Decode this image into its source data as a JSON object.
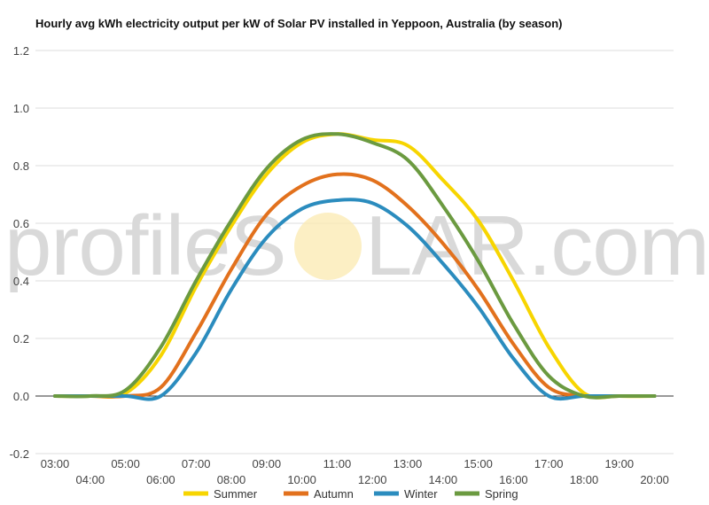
{
  "chart_data": {
    "type": "line",
    "title": "Hourly avg kWh electricity output per kW of Solar PV installed in Yeppoon, Australia (by season)",
    "xlabel": "",
    "ylabel": "",
    "ylim": [
      -0.2,
      1.2
    ],
    "yticks": [
      "-0.2",
      "0.0",
      "0.2",
      "0.4",
      "0.6",
      "0.8",
      "1.0",
      "1.2"
    ],
    "grid": true,
    "legend_position": "bottom",
    "x": [
      "03:00",
      "04:00",
      "05:00",
      "06:00",
      "07:00",
      "08:00",
      "09:00",
      "10:00",
      "11:00",
      "12:00",
      "13:00",
      "14:00",
      "15:00",
      "16:00",
      "17:00",
      "18:00",
      "19:00",
      "20:00"
    ],
    "series": [
      {
        "name": "Summer",
        "color": "#f7d500",
        "values": [
          0,
          0,
          0.01,
          0.14,
          0.38,
          0.59,
          0.77,
          0.88,
          0.91,
          0.89,
          0.87,
          0.75,
          0.61,
          0.4,
          0.17,
          0.01,
          0,
          0
        ]
      },
      {
        "name": "Autumn",
        "color": "#e2711d",
        "values": [
          0,
          0,
          0,
          0.03,
          0.22,
          0.44,
          0.63,
          0.73,
          0.77,
          0.75,
          0.66,
          0.53,
          0.37,
          0.18,
          0.03,
          0,
          0,
          0
        ]
      },
      {
        "name": "Winter",
        "color": "#2b8cbe",
        "values": [
          0,
          0,
          0,
          0,
          0.15,
          0.37,
          0.55,
          0.65,
          0.68,
          0.67,
          0.59,
          0.46,
          0.31,
          0.13,
          0,
          0,
          0,
          0
        ]
      },
      {
        "name": "Spring",
        "color": "#6b9a40",
        "values": [
          0,
          0,
          0.02,
          0.17,
          0.4,
          0.61,
          0.79,
          0.89,
          0.91,
          0.88,
          0.82,
          0.66,
          0.47,
          0.25,
          0.07,
          0,
          0,
          0
        ]
      }
    ]
  },
  "watermark": {
    "left": "profileS",
    "right": "LAR.com"
  }
}
